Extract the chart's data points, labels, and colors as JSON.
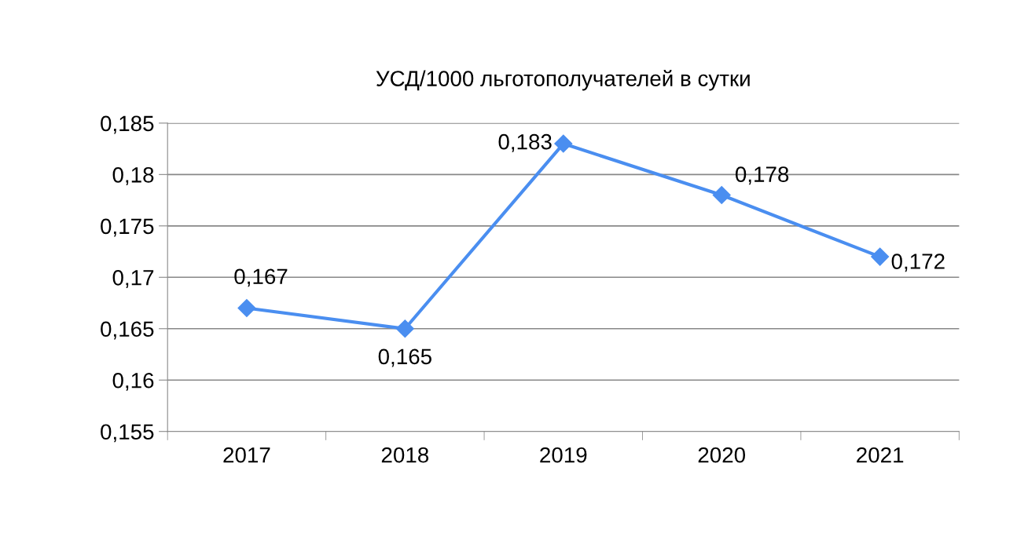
{
  "chart_data": {
    "type": "line",
    "title": "УСД/1000 льготополучателей в сутки",
    "categories": [
      "2017",
      "2018",
      "2019",
      "2020",
      "2021"
    ],
    "series": [
      {
        "color": "#4a8ef0",
        "values": [
          0.167,
          0.165,
          0.183,
          0.178,
          0.172
        ],
        "value_labels": [
          "0,167",
          "0,165",
          "0,183",
          "0,178",
          "0,172"
        ]
      }
    ],
    "ylim": [
      0.155,
      0.185
    ],
    "yticks": [
      {
        "value": 0.155,
        "label": "0,155"
      },
      {
        "value": 0.16,
        "label": "0,16"
      },
      {
        "value": 0.165,
        "label": "0,165"
      },
      {
        "value": 0.17,
        "label": "0,17"
      },
      {
        "value": 0.175,
        "label": "0,175"
      },
      {
        "value": 0.18,
        "label": "0,18"
      },
      {
        "value": 0.185,
        "label": "0,185"
      }
    ],
    "grid": "y",
    "marker": "diamond",
    "line_style": "solid",
    "legend": false
  }
}
